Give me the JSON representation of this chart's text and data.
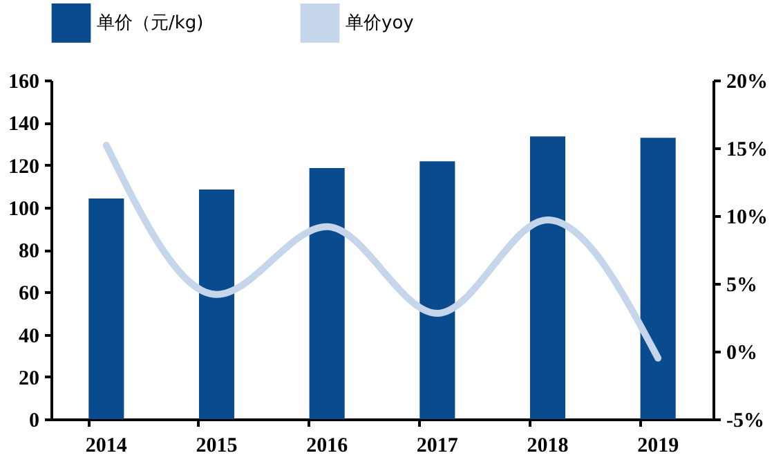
{
  "chart_data": {
    "type": "bar",
    "categories": [
      "2014",
      "2015",
      "2016",
      "2017",
      "2018",
      "2019"
    ],
    "series": [
      {
        "name": "单价（元/kg)",
        "color": "#0a4a8f",
        "values": [
          104.2,
          108.4,
          118.5,
          121.7,
          133.5,
          132.8
        ]
      },
      {
        "name": "单价yoy",
        "type": "line",
        "axis": "y2",
        "color": "#c5d5ea",
        "values": [
          15.2,
          4.2,
          9.2,
          2.8,
          9.7,
          -0.5
        ]
      }
    ],
    "ylim": [
      0,
      160
    ],
    "yticks": [
      0,
      20,
      40,
      60,
      80,
      100,
      120,
      140,
      160
    ],
    "y2lim": [
      -5,
      20
    ],
    "y2ticks": [
      {
        "value": -5,
        "label": "-5%"
      },
      {
        "value": 0,
        "label": "0%"
      },
      {
        "value": 5,
        "label": "5%"
      },
      {
        "value": 10,
        "label": "10%"
      },
      {
        "value": 15,
        "label": "15%"
      },
      {
        "value": 20,
        "label": "20%"
      }
    ],
    "legend": "top",
    "grid": false,
    "line_style": "solid",
    "marker": "none"
  }
}
